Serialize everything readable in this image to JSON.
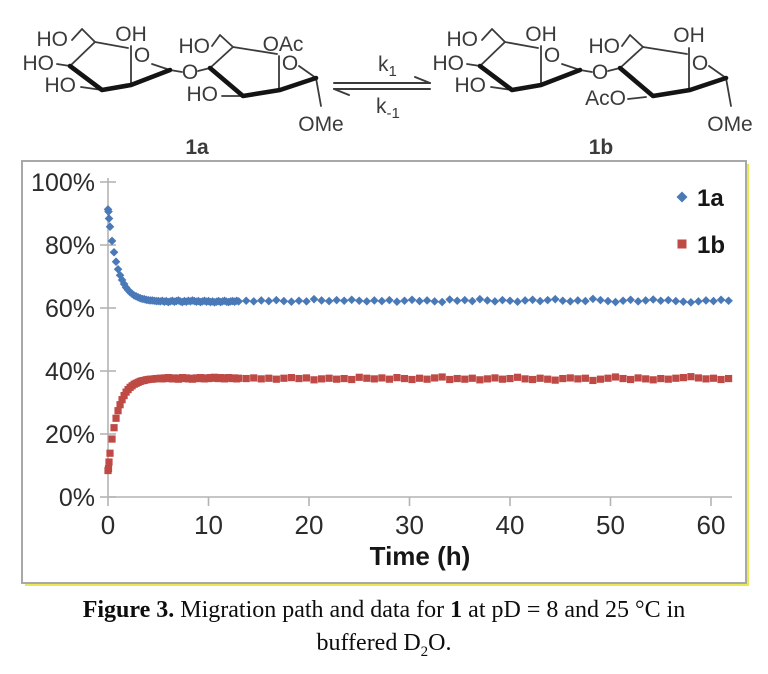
{
  "scheme": {
    "compound_a": {
      "name": "1a",
      "ho_arm": "HO",
      "oh_top": "OH",
      "ho_left": "HO",
      "ho_bottom": "HO",
      "ring_o": "O",
      "glycosidic_o": "O",
      "ho_arm_right": "HO",
      "ho_front": "HO",
      "oac": "OAc",
      "ring_o_right": "O",
      "ome": "OMe"
    },
    "compound_b": {
      "name": "1b",
      "ho_arm": "HO",
      "oh_top": "OH",
      "ho_left": "HO",
      "ho_bottom": "HO",
      "ring_o": "O",
      "glycosidic_o": "O",
      "ho_arm_right": "HO",
      "oh_right": "OH",
      "aco": "AcO",
      "ring_o_right": "O",
      "ome": "OMe"
    },
    "equilibrium": {
      "k_forward": "k",
      "k_forward_sub": "1",
      "k_reverse": "k",
      "k_reverse_sub": "-1"
    }
  },
  "chart_data": {
    "type": "scatter",
    "title": "",
    "xlabel": "Time (h)",
    "ylabel": "",
    "xlim": [
      0,
      62
    ],
    "ylim": [
      0,
      100
    ],
    "xticks": [
      0,
      10,
      20,
      30,
      40,
      50,
      60
    ],
    "yticks": [
      0,
      20,
      40,
      60,
      80,
      100
    ],
    "ytick_suffix": "%",
    "grid": false,
    "legend_position": "top-right",
    "axis_color": "#b4b4b4",
    "tick_label_color": "#2b2b2b",
    "series": [
      {
        "name": "1a",
        "marker": "diamond",
        "color": "#4a79b8",
        "points": [
          [
            0,
            91.3
          ],
          [
            0.05,
            90.6
          ],
          [
            0.1,
            88.4
          ],
          [
            0.2,
            85.8
          ],
          [
            0.4,
            81.3
          ],
          [
            0.6,
            77.7
          ],
          [
            0.8,
            74.7
          ],
          [
            1,
            72.3
          ],
          [
            1.2,
            70.4
          ],
          [
            1.4,
            68.9
          ],
          [
            1.6,
            67.6
          ],
          [
            1.8,
            66.5
          ],
          [
            2,
            65.7
          ],
          [
            2.2,
            65
          ],
          [
            2.4,
            64.5
          ],
          [
            2.6,
            64
          ],
          [
            2.8,
            63.7
          ],
          [
            3,
            63.4
          ],
          [
            3.2,
            63.1
          ],
          [
            3.4,
            62.9
          ],
          [
            3.6,
            62.8
          ],
          [
            3.8,
            62.6
          ],
          [
            4,
            62.5
          ],
          [
            4.2,
            62.4
          ],
          [
            4.4,
            62.4
          ],
          [
            4.6,
            62.3
          ],
          [
            4.8,
            62.2
          ],
          [
            5,
            62.2
          ],
          [
            5.2,
            62.1
          ],
          [
            5.4,
            62.3
          ],
          [
            5.6,
            62
          ],
          [
            5.8,
            62.2
          ],
          [
            6,
            61.9
          ],
          [
            6.2,
            62.1
          ],
          [
            6.4,
            62.3
          ],
          [
            6.6,
            62
          ],
          [
            6.8,
            62.2
          ],
          [
            7,
            62.4
          ],
          [
            7.2,
            62.1
          ],
          [
            7.4,
            61.9
          ],
          [
            7.6,
            62.2
          ],
          [
            7.8,
            62
          ],
          [
            8,
            62.3
          ],
          [
            8.2,
            62.1
          ],
          [
            8.4,
            62.4
          ],
          [
            8.6,
            62.2
          ],
          [
            8.8,
            62
          ],
          [
            9,
            62.2
          ],
          [
            9.2,
            61.9
          ],
          [
            9.4,
            62.1
          ],
          [
            9.6,
            62.3
          ],
          [
            9.8,
            62
          ],
          [
            10,
            62.2
          ],
          [
            10.2,
            61.9
          ],
          [
            10.4,
            62.1
          ],
          [
            10.6,
            61.8
          ],
          [
            10.8,
            62
          ],
          [
            11,
            62.2
          ],
          [
            11.2,
            61.9
          ],
          [
            11.4,
            62.1
          ],
          [
            11.6,
            62.3
          ],
          [
            11.8,
            62
          ],
          [
            12,
            61.9
          ],
          [
            12.2,
            62.1
          ],
          [
            12.4,
            62.2
          ],
          [
            12.6,
            62
          ],
          [
            12.8,
            62.3
          ],
          [
            13,
            62.1
          ],
          [
            13.75,
            62.3
          ],
          [
            14.5,
            62.1
          ],
          [
            15.25,
            62.4
          ],
          [
            16,
            62.2
          ],
          [
            16.75,
            62.5
          ],
          [
            17.5,
            62.2
          ],
          [
            18.25,
            62
          ],
          [
            19,
            62.3
          ],
          [
            19.75,
            62.1
          ],
          [
            20.5,
            62.8
          ],
          [
            21.25,
            62.4
          ],
          [
            22,
            62.2
          ],
          [
            22.75,
            62.5
          ],
          [
            23.5,
            62.3
          ],
          [
            24.25,
            62.6
          ],
          [
            25,
            62.3
          ],
          [
            25.75,
            62.1
          ],
          [
            26.5,
            62.4
          ],
          [
            27.25,
            62.2
          ],
          [
            28,
            62.5
          ],
          [
            28.75,
            62
          ],
          [
            29.5,
            62.3
          ],
          [
            30.25,
            62.6
          ],
          [
            31,
            62.2
          ],
          [
            31.75,
            62.4
          ],
          [
            32.5,
            62.1
          ],
          [
            33.25,
            61.9
          ],
          [
            34,
            62.7
          ],
          [
            34.75,
            62.3
          ],
          [
            35.5,
            62.5
          ],
          [
            36.25,
            62.2
          ],
          [
            37,
            62.8
          ],
          [
            37.75,
            62.4
          ],
          [
            38.5,
            62.1
          ],
          [
            39.25,
            62.5
          ],
          [
            40,
            62.3
          ],
          [
            40.75,
            62
          ],
          [
            41.5,
            62.4
          ],
          [
            42.25,
            62.6
          ],
          [
            43,
            62.2
          ],
          [
            43.75,
            62.5
          ],
          [
            44.5,
            62.8
          ],
          [
            45.25,
            62.3
          ],
          [
            46,
            62.1
          ],
          [
            46.75,
            62.4
          ],
          [
            47.5,
            62.2
          ],
          [
            48.25,
            62.9
          ],
          [
            49,
            62.5
          ],
          [
            49.75,
            62.2
          ],
          [
            50.5,
            61.9
          ],
          [
            51.25,
            62.3
          ],
          [
            52,
            62.6
          ],
          [
            52.75,
            62.1
          ],
          [
            53.5,
            62.4
          ],
          [
            54.25,
            62.7
          ],
          [
            55,
            62.3
          ],
          [
            55.75,
            62.5
          ],
          [
            56.5,
            62.2
          ],
          [
            57.25,
            62
          ],
          [
            58,
            61.8
          ],
          [
            58.75,
            62.1
          ],
          [
            59.5,
            62.4
          ],
          [
            60.25,
            62.2
          ],
          [
            61,
            62.6
          ],
          [
            61.75,
            62.3
          ]
        ]
      },
      {
        "name": "1b",
        "marker": "square",
        "color": "#bf4a45",
        "points": [
          [
            0,
            8.4
          ],
          [
            0.05,
            9
          ],
          [
            0.1,
            11.1
          ],
          [
            0.2,
            13.9
          ],
          [
            0.4,
            18.4
          ],
          [
            0.6,
            22
          ],
          [
            0.8,
            25
          ],
          [
            1,
            27.4
          ],
          [
            1.2,
            29.3
          ],
          [
            1.4,
            30.9
          ],
          [
            1.6,
            32.2
          ],
          [
            1.8,
            33.3
          ],
          [
            2,
            34.1
          ],
          [
            2.2,
            34.8
          ],
          [
            2.4,
            35.3
          ],
          [
            2.6,
            35.8
          ],
          [
            2.8,
            36.1
          ],
          [
            3,
            36.4
          ],
          [
            3.2,
            36.7
          ],
          [
            3.4,
            36.9
          ],
          [
            3.6,
            37
          ],
          [
            3.8,
            37.2
          ],
          [
            4,
            37.3
          ],
          [
            4.2,
            37.4
          ],
          [
            4.4,
            37.4
          ],
          [
            4.6,
            37.5
          ],
          [
            4.8,
            37.6
          ],
          [
            5,
            37.6
          ],
          [
            5.2,
            37.7
          ],
          [
            5.4,
            37.5
          ],
          [
            5.6,
            37.8
          ],
          [
            5.8,
            37.6
          ],
          [
            6,
            37.9
          ],
          [
            6.2,
            37.7
          ],
          [
            6.4,
            37.5
          ],
          [
            6.6,
            37.8
          ],
          [
            6.8,
            37.6
          ],
          [
            7,
            37.4
          ],
          [
            7.2,
            37.7
          ],
          [
            7.4,
            37.9
          ],
          [
            7.6,
            37.6
          ],
          [
            7.8,
            37.8
          ],
          [
            8,
            37.5
          ],
          [
            8.2,
            37.7
          ],
          [
            8.4,
            37.4
          ],
          [
            8.6,
            37.6
          ],
          [
            8.8,
            37.8
          ],
          [
            9,
            37.6
          ],
          [
            9.2,
            37.9
          ],
          [
            9.4,
            37.7
          ],
          [
            9.6,
            37.5
          ],
          [
            9.8,
            37.8
          ],
          [
            10,
            37.6
          ],
          [
            10.2,
            37.9
          ],
          [
            10.4,
            37.7
          ],
          [
            10.6,
            38
          ],
          [
            10.8,
            37.8
          ],
          [
            11,
            37.6
          ],
          [
            11.2,
            37.9
          ],
          [
            11.4,
            37.7
          ],
          [
            11.6,
            37.5
          ],
          [
            11.8,
            37.8
          ],
          [
            12,
            37.9
          ],
          [
            12.2,
            37.7
          ],
          [
            12.4,
            37.6
          ],
          [
            12.6,
            37.8
          ],
          [
            12.8,
            37.5
          ],
          [
            13,
            37.7
          ],
          [
            13.75,
            37.6
          ],
          [
            14.5,
            37.8
          ],
          [
            15.25,
            37.5
          ],
          [
            16,
            37.7
          ],
          [
            16.75,
            37.4
          ],
          [
            17.5,
            37.7
          ],
          [
            18.25,
            37.9
          ],
          [
            19,
            37.6
          ],
          [
            19.75,
            37.8
          ],
          [
            20.5,
            37.2
          ],
          [
            21.25,
            37.5
          ],
          [
            22,
            37.7
          ],
          [
            22.75,
            37.4
          ],
          [
            23.5,
            37.6
          ],
          [
            24.25,
            37.3
          ],
          [
            25,
            38
          ],
          [
            25.75,
            37.7
          ],
          [
            26.5,
            37.5
          ],
          [
            27.25,
            37.8
          ],
          [
            28,
            37.4
          ],
          [
            28.75,
            37.9
          ],
          [
            29.5,
            37.6
          ],
          [
            30.25,
            37.3
          ],
          [
            31,
            37.7
          ],
          [
            31.75,
            37.4
          ],
          [
            32.5,
            37.8
          ],
          [
            33.25,
            38.1
          ],
          [
            34,
            37.3
          ],
          [
            34.75,
            37.6
          ],
          [
            35.5,
            37.4
          ],
          [
            36.25,
            37.7
          ],
          [
            37,
            37.2
          ],
          [
            37.75,
            37.5
          ],
          [
            38.5,
            37.8
          ],
          [
            39.25,
            37.4
          ],
          [
            40,
            37.6
          ],
          [
            40.75,
            38
          ],
          [
            41.5,
            37.5
          ],
          [
            42.25,
            37.3
          ],
          [
            43,
            37.7
          ],
          [
            43.75,
            37.4
          ],
          [
            44.5,
            37.1
          ],
          [
            45.25,
            37.6
          ],
          [
            46,
            37.8
          ],
          [
            46.75,
            37.5
          ],
          [
            47.5,
            37.7
          ],
          [
            48.25,
            37
          ],
          [
            49,
            37.4
          ],
          [
            49.75,
            37.7
          ],
          [
            50.5,
            38.1
          ],
          [
            51.25,
            37.6
          ],
          [
            52,
            37.3
          ],
          [
            52.75,
            37.8
          ],
          [
            53.5,
            37.5
          ],
          [
            54.25,
            37.2
          ],
          [
            55,
            37.6
          ],
          [
            55.75,
            37.4
          ],
          [
            56.5,
            37.7
          ],
          [
            57.25,
            37.9
          ],
          [
            58,
            38.2
          ],
          [
            58.75,
            37.8
          ],
          [
            59.5,
            37.5
          ],
          [
            60.25,
            37.7
          ],
          [
            61,
            37.3
          ],
          [
            61.75,
            37.6
          ]
        ]
      }
    ]
  },
  "caption": {
    "label": "Figure 3.",
    "text_a": " Migration path and data for ",
    "compound": "1",
    "text_b": " at pD = 8 and 25 °C in",
    "line2_a": "buffered D",
    "line2_sub": "2",
    "line2_b": "O."
  },
  "colors": {
    "accent_red": "#e23128",
    "series_1a": "#4a79b8",
    "series_1b": "#bf4a45",
    "frame_border": "#a8a8a8",
    "frame_shadow": "#e9e94f",
    "axis": "#b4b4b4"
  }
}
